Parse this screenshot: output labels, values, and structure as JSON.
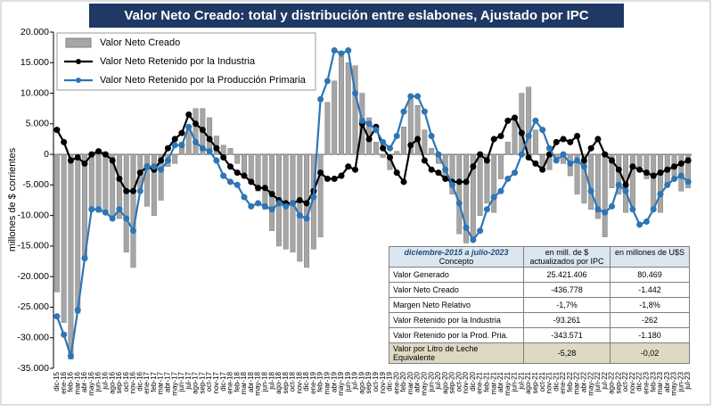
{
  "chart_data": {
    "type": "bar_line",
    "title": "Valor Neto Creado: total y distribución  entre eslabones, Ajustado  por IPC",
    "ylabel": "millones de $ corrientes",
    "ylim": [
      -35000,
      20000
    ],
    "yticks": [
      {
        "value": 20000,
        "label": "20.000"
      },
      {
        "value": 15000,
        "label": "15.000"
      },
      {
        "value": 10000,
        "label": "10.000"
      },
      {
        "value": 5000,
        "label": "5.000"
      },
      0,
      {
        "value": -5000,
        "label": "-5.000"
      },
      {
        "value": -10000,
        "label": "-10.000"
      },
      {
        "value": -15000,
        "label": "-15.000"
      },
      {
        "value": -20000,
        "label": "-20.000"
      },
      {
        "value": -25000,
        "label": "-25.000"
      },
      {
        "value": -30000,
        "label": "-30.000"
      },
      {
        "value": -35000,
        "label": "-35.000"
      }
    ],
    "grid": false,
    "legend": "upper left",
    "categories": [
      "dic-15",
      "ene-16",
      "feb-16",
      "mar-16",
      "abr-16",
      "may-16",
      "jun-16",
      "jul-16",
      "ago-16",
      "sep-16",
      "oct-16",
      "nov-16",
      "dic-16",
      "ene-17",
      "feb-17",
      "mar-17",
      "abr-17",
      "may-17",
      "jun-17",
      "jul-17",
      "ago-17",
      "sep-17",
      "oct-17",
      "nov-17",
      "dic-17",
      "ene-18",
      "feb-18",
      "mar-18",
      "abr-18",
      "may-18",
      "jun-18",
      "jul-18",
      "ago-18",
      "sep-18",
      "oct-18",
      "nov-18",
      "dic-18",
      "ene-19",
      "feb-19",
      "mar-19",
      "abr-19",
      "may-19",
      "jun-19",
      "jul-19",
      "ago-19",
      "sep-19",
      "oct-19",
      "nov-19",
      "dic-19",
      "ene-20",
      "feb-20",
      "mar-20",
      "abr-20",
      "may-20",
      "jun-20",
      "jul-20",
      "ago-20",
      "sep-20",
      "oct-20",
      "nov-20",
      "dic-20",
      "ene-21",
      "feb-21",
      "mar-21",
      "abr-21",
      "may-21",
      "jun-21",
      "jul-21",
      "ago-21",
      "sep-21",
      "oct-21",
      "nov-21",
      "dic-21",
      "ene-22",
      "feb-22",
      "mar-22",
      "abr-22",
      "may-22",
      "jun-22",
      "jul-22",
      "ago-22",
      "sep-22",
      "oct-22",
      "nov-22",
      "dic-22",
      "ene-23",
      "feb-23",
      "mar-23",
      "abr-23",
      "may-23",
      "jun-23",
      "jul-23"
    ],
    "series": [
      {
        "name": "Valor Neto Creado",
        "kind": "bar",
        "color": "#a6a6a6",
        "values": [
          -22500,
          -27500,
          -33500,
          -26000,
          -17000,
          -9000,
          -9500,
          -9500,
          -10500,
          -10500,
          -16000,
          -18500,
          -5500,
          -8500,
          -10000,
          -7500,
          -2000,
          -1500,
          2000,
          4500,
          7500,
          7500,
          6000,
          3000,
          1500,
          1000,
          -1500,
          -3000,
          -4500,
          -6000,
          -9000,
          -12500,
          -15000,
          -15500,
          -16000,
          -17500,
          -18500,
          -15500,
          -13500,
          8500,
          12000,
          16000,
          15000,
          14500,
          10000,
          6000,
          2000,
          -500,
          -2500,
          500,
          4500,
          9000,
          8000,
          4000,
          1000,
          -1500,
          -3500,
          -6500,
          -13000,
          -14500,
          -14000,
          -10000,
          -8000,
          -9500,
          -4000,
          2000,
          6000,
          10000,
          11000,
          4000,
          -2000,
          -2500,
          -1000,
          -1500,
          -3500,
          -6500,
          -8000,
          -9000,
          -10500,
          -13500,
          -5500,
          -6500,
          -9500,
          -8500,
          -2000,
          -4000,
          -9000,
          -9500,
          -5000,
          -3500,
          -6000,
          -5500
        ]
      },
      {
        "name": "Valor Neto Retenido por la Industria",
        "kind": "line",
        "color": "#000000",
        "values": [
          4000,
          2000,
          -1000,
          -500,
          -1500,
          0,
          500,
          0,
          -1000,
          -4000,
          -6000,
          -6000,
          -3000,
          -2000,
          -2500,
          -1000,
          1000,
          2500,
          3500,
          6500,
          5000,
          4000,
          2500,
          1000,
          -500,
          -2000,
          -3000,
          -3500,
          -4500,
          -5500,
          -5500,
          -6500,
          -7500,
          -8000,
          -8000,
          -7500,
          -8000,
          -6000,
          -3000,
          -4000,
          -4000,
          -3500,
          -2000,
          -2500,
          5000,
          2500,
          4500,
          1000,
          -500,
          -3000,
          -4500,
          1500,
          2500,
          -1000,
          -2500,
          -3000,
          -4000,
          -4500,
          -4500,
          -4500,
          -2000,
          0,
          -1000,
          2500,
          3000,
          5500,
          6000,
          3500,
          -500,
          -1500,
          -2500,
          0,
          2000,
          2500,
          2000,
          3000,
          -1000,
          1000,
          2500,
          0,
          -1000,
          -2500,
          -5000,
          -2000,
          -2500,
          -3000,
          -3500,
          -3000,
          -2500,
          -2000,
          -1500,
          -1000
        ]
      },
      {
        "name": "Valor Neto Retenido por la Producción Primaria",
        "kind": "line",
        "color": "#2e75b6",
        "values": [
          -26500,
          -29500,
          -33000,
          -25500,
          -17000,
          -9000,
          -9000,
          -9500,
          -10500,
          -9000,
          -10500,
          -12500,
          -6000,
          -2000,
          -2000,
          -2500,
          -1000,
          1500,
          1500,
          4500,
          2000,
          1000,
          500,
          -1000,
          -3500,
          -4500,
          -5000,
          -7000,
          -8500,
          -8000,
          -8500,
          -9000,
          -8000,
          -8500,
          -8000,
          -10000,
          -10500,
          -7000,
          9000,
          12000,
          17000,
          16500,
          17000,
          10000,
          5500,
          5000,
          4000,
          2000,
          1000,
          3000,
          7000,
          9500,
          9500,
          7000,
          3000,
          0,
          -2500,
          -5000,
          -8000,
          -12000,
          -14000,
          -12500,
          -9000,
          -7000,
          -6000,
          -4000,
          -3000,
          0,
          3000,
          5500,
          4000,
          1000,
          -1000,
          0,
          -1500,
          -1000,
          -2000,
          -6000,
          -9000,
          -9500,
          -8500,
          -5000,
          -6000,
          -9000,
          -11500,
          -11000,
          -9000,
          -6500,
          -5000,
          -4000,
          -3500,
          -4500
        ]
      }
    ],
    "table": {
      "period": "diciembre-2015 a julio-2023",
      "columns": [
        "Concepto",
        "en mill. de $ actualizados por IPC",
        "en millones de U$S"
      ],
      "rows": [
        [
          "Valor Generado",
          "25.421.406",
          "80.469"
        ],
        [
          "Valor Neto Creado",
          "-436.778",
          "-1.442"
        ],
        [
          "Margen Neto Relativo",
          "-1,7%",
          "-1,8%"
        ],
        [
          "Valor Retenido por la Industria",
          "-93.261",
          "-262"
        ],
        [
          "Valor Retenido por la Prod. Pria.",
          "-343.571",
          "-1.180"
        ],
        [
          "Valor por Litro de Leche Equivalente",
          "-5,28",
          "-0,02"
        ]
      ]
    }
  }
}
